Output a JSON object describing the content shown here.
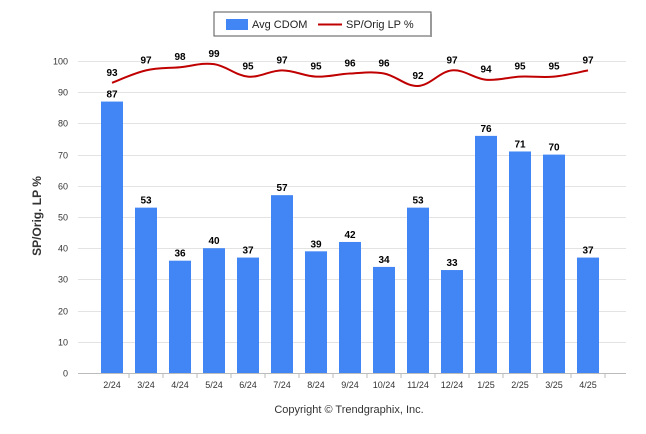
{
  "chart_data": {
    "type": "bar",
    "ylabel": "SP/Orig. LP %",
    "ylim": [
      0,
      100
    ],
    "yticks": [
      0,
      10,
      20,
      30,
      40,
      50,
      60,
      70,
      80,
      90,
      100
    ],
    "grid": true,
    "legend_position": "top-center",
    "categories": [
      "2/24",
      "3/24",
      "4/24",
      "5/24",
      "6/24",
      "7/24",
      "8/24",
      "9/24",
      "10/24",
      "11/24",
      "12/24",
      "1/25",
      "2/25",
      "3/25",
      "4/25"
    ],
    "series": [
      {
        "name": "Avg CDOM",
        "type": "bar",
        "color": "#4285f4",
        "values": [
          87,
          53,
          36,
          40,
          37,
          57,
          39,
          42,
          34,
          53,
          33,
          76,
          71,
          70,
          37
        ]
      },
      {
        "name": "SP/Orig LP %",
        "type": "line",
        "color": "#c00000",
        "values": [
          93,
          97,
          98,
          99,
          95,
          97,
          95,
          96,
          96,
          92,
          97,
          94,
          95,
          95,
          97
        ]
      }
    ],
    "copyright": "Copyright © Trendgraphix, Inc."
  }
}
